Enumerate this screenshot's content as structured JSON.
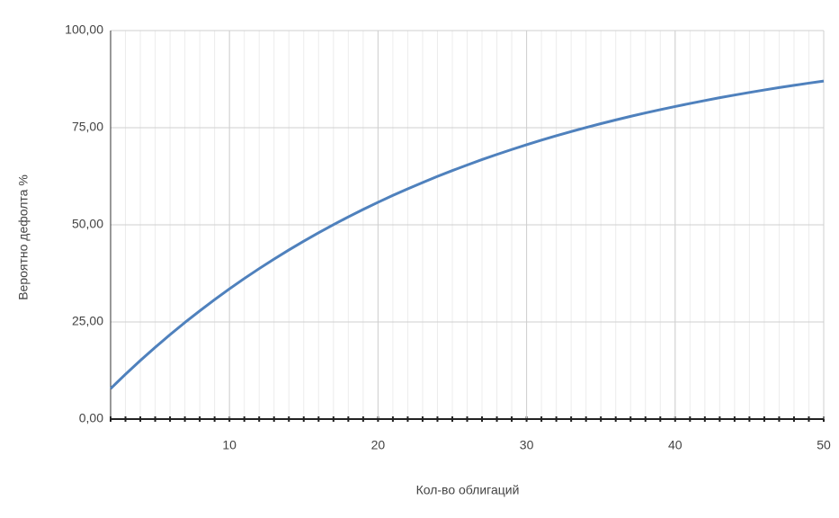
{
  "chart_data": {
    "type": "line",
    "x_label": "Кол-во облигаций",
    "y_label": "Вероятно дефолта %",
    "x": [
      2,
      3,
      4,
      5,
      6,
      7,
      8,
      9,
      10,
      11,
      12,
      13,
      14,
      15,
      16,
      17,
      18,
      19,
      20,
      21,
      22,
      23,
      24,
      25,
      26,
      27,
      28,
      29,
      30,
      31,
      32,
      33,
      34,
      35,
      36,
      37,
      38,
      39,
      40,
      41,
      42,
      43,
      44,
      45,
      46,
      47,
      48,
      49,
      50
    ],
    "series": [
      {
        "color": "#4f81bd",
        "values": [
          7.84,
          11.53,
          15.07,
          18.46,
          21.72,
          24.86,
          27.86,
          30.75,
          33.52,
          36.18,
          38.73,
          41.18,
          43.53,
          45.79,
          47.96,
          50.04,
          52.04,
          53.96,
          55.8,
          57.57,
          59.27,
          60.89,
          62.46,
          63.96,
          65.4,
          66.79,
          68.11,
          69.39,
          70.61,
          71.79,
          72.92,
          74.0,
          75.04,
          76.04,
          77.0,
          77.92,
          78.8,
          79.65,
          80.46,
          81.24,
          81.99,
          82.72,
          83.41,
          84.07,
          84.71,
          85.32,
          85.91,
          86.47,
          87.01
        ]
      }
    ],
    "xlim": [
      2,
      50
    ],
    "xticks": [
      10,
      20,
      30,
      40,
      50
    ],
    "ylim": [
      0,
      100
    ],
    "yticks": [
      {
        "value": 0,
        "label": "0,00"
      },
      {
        "value": 25,
        "label": "25,00"
      },
      {
        "value": 50,
        "label": "50,00"
      },
      {
        "value": 75,
        "label": "75,00"
      },
      {
        "value": 100,
        "label": "100,00"
      }
    ],
    "grid": true
  }
}
